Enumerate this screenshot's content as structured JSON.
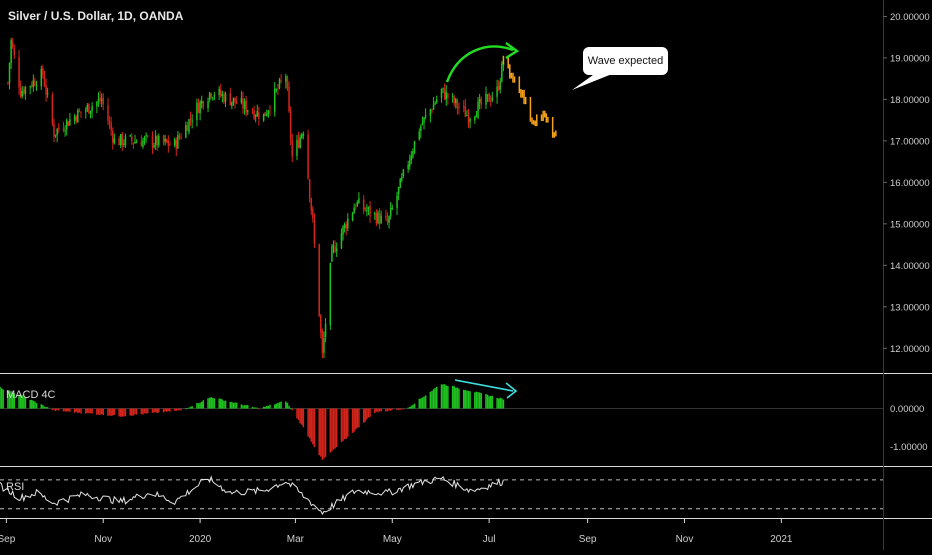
{
  "chart": {
    "title": "Silver / U.S. Dollar, 1D, OANDA",
    "colors": {
      "background": "#000000",
      "up": "#1fc21f",
      "down": "#d4251c",
      "forecast": "#f5a21b",
      "arrow": "#22dd22",
      "macd_arrow": "#40e0e0",
      "rsi_line": "#e6e6e6",
      "separator": "#d9d9d9",
      "axis_text": "#cfcfcf"
    }
  },
  "annotations": {
    "callout_text": "Wave expected"
  },
  "panes": {
    "macd_label": "MACD 4C",
    "rsi_label": "RSI"
  },
  "chart_data": [
    {
      "type": "candlestick",
      "title": "Silver / U.S. Dollar, 1D, OANDA",
      "x_tick_labels": [
        "Sep",
        "Nov",
        "2020",
        "Mar",
        "May",
        "Jul",
        "Sep",
        "Nov",
        "2021"
      ],
      "y_tick_labels": [
        "20.00000",
        "19.00000",
        "18.00000",
        "17.00000",
        "16.00000",
        "15.00000",
        "14.00000",
        "13.00000",
        "12.00000"
      ],
      "ylim": [
        11.5,
        20.3
      ],
      "close_anchors": [
        {
          "x": "2019-09-02",
          "y": 18.4
        },
        {
          "x": "2019-09-04",
          "y": 19.4
        },
        {
          "x": "2019-09-10",
          "y": 18.2
        },
        {
          "x": "2019-09-24",
          "y": 18.6
        },
        {
          "x": "2019-10-01",
          "y": 17.2
        },
        {
          "x": "2019-10-14",
          "y": 17.6
        },
        {
          "x": "2019-10-31",
          "y": 18.0
        },
        {
          "x": "2019-11-08",
          "y": 17.0
        },
        {
          "x": "2019-11-29",
          "y": 17.0
        },
        {
          "x": "2019-12-16",
          "y": 16.9
        },
        {
          "x": "2019-12-30",
          "y": 17.8
        },
        {
          "x": "2020-01-08",
          "y": 18.2
        },
        {
          "x": "2020-01-20",
          "y": 18.0
        },
        {
          "x": "2020-02-10",
          "y": 17.6
        },
        {
          "x": "2020-02-24",
          "y": 18.6
        },
        {
          "x": "2020-02-28",
          "y": 16.6
        },
        {
          "x": "2020-03-06",
          "y": 17.3
        },
        {
          "x": "2020-03-12",
          "y": 15.0
        },
        {
          "x": "2020-03-18",
          "y": 11.8
        },
        {
          "x": "2020-03-24",
          "y": 14.3
        },
        {
          "x": "2020-04-08",
          "y": 15.5
        },
        {
          "x": "2020-04-28",
          "y": 15.0
        },
        {
          "x": "2020-05-18",
          "y": 17.3
        },
        {
          "x": "2020-06-01",
          "y": 18.2
        },
        {
          "x": "2020-06-18",
          "y": 17.6
        },
        {
          "x": "2020-07-06",
          "y": 18.2
        },
        {
          "x": "2020-07-10",
          "y": 18.9
        }
      ],
      "forecast_anchors": [
        {
          "x": "2020-07-10",
          "y": 18.9
        },
        {
          "x": "2020-07-20",
          "y": 18.3
        },
        {
          "x": "2020-07-28",
          "y": 17.5
        },
        {
          "x": "2020-08-04",
          "y": 17.6
        },
        {
          "x": "2020-08-12",
          "y": 17.1
        }
      ],
      "x_range": [
        "2019-08-28",
        "2021-03-06"
      ]
    },
    {
      "type": "histogram",
      "name": "MACD 4C",
      "y_tick_labels": [
        "0.00000",
        "-1.00000"
      ],
      "ylim": [
        -1.4,
        0.8
      ],
      "anchors": [
        {
          "x": "2019-08-28",
          "y": 0.55
        },
        {
          "x": "2019-09-10",
          "y": 0.35
        },
        {
          "x": "2019-10-01",
          "y": -0.05
        },
        {
          "x": "2019-11-12",
          "y": -0.2
        },
        {
          "x": "2019-12-20",
          "y": -0.05
        },
        {
          "x": "2020-01-08",
          "y": 0.3
        },
        {
          "x": "2020-02-07",
          "y": 0.0
        },
        {
          "x": "2020-02-24",
          "y": 0.2
        },
        {
          "x": "2020-03-06",
          "y": -0.5
        },
        {
          "x": "2020-03-18",
          "y": -1.35
        },
        {
          "x": "2020-04-20",
          "y": -0.1
        },
        {
          "x": "2020-05-10",
          "y": 0.0
        },
        {
          "x": "2020-06-01",
          "y": 0.65
        },
        {
          "x": "2020-07-10",
          "y": 0.25
        }
      ]
    },
    {
      "type": "line",
      "name": "RSI",
      "levels": [
        70,
        30
      ],
      "ylim": [
        20,
        85
      ],
      "anchors": [
        {
          "x": "2019-08-28",
          "y": 62
        },
        {
          "x": "2019-09-10",
          "y": 45
        },
        {
          "x": "2019-09-20",
          "y": 52
        },
        {
          "x": "2019-10-01",
          "y": 38
        },
        {
          "x": "2019-10-20",
          "y": 50
        },
        {
          "x": "2019-11-12",
          "y": 40
        },
        {
          "x": "2019-12-01",
          "y": 52
        },
        {
          "x": "2019-12-16",
          "y": 40
        },
        {
          "x": "2020-01-06",
          "y": 72
        },
        {
          "x": "2020-01-20",
          "y": 52
        },
        {
          "x": "2020-02-10",
          "y": 55
        },
        {
          "x": "2020-02-24",
          "y": 68
        },
        {
          "x": "2020-03-06",
          "y": 48
        },
        {
          "x": "2020-03-18",
          "y": 25
        },
        {
          "x": "2020-04-08",
          "y": 55
        },
        {
          "x": "2020-04-28",
          "y": 52
        },
        {
          "x": "2020-05-18",
          "y": 66
        },
        {
          "x": "2020-06-01",
          "y": 72
        },
        {
          "x": "2020-06-20",
          "y": 55
        },
        {
          "x": "2020-07-10",
          "y": 68
        }
      ]
    }
  ]
}
